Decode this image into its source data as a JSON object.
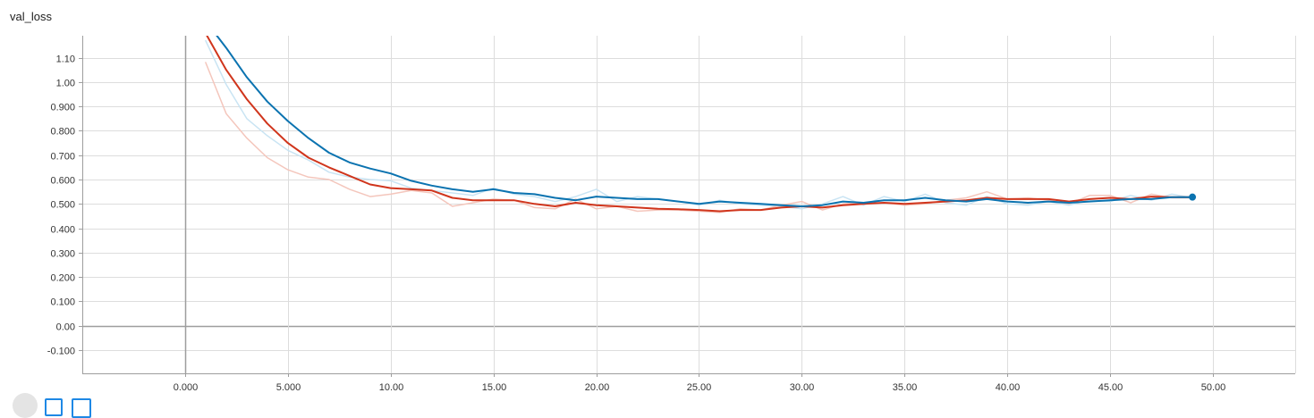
{
  "chart_data": {
    "type": "line",
    "title": "val_loss",
    "xlabel": "",
    "ylabel": "",
    "xlim": [
      -5,
      54
    ],
    "ylim": [
      -0.195,
      1.19
    ],
    "x_ticks": [
      0,
      5,
      10,
      15,
      20,
      25,
      30,
      35,
      40,
      45,
      50
    ],
    "x_tick_labels": [
      "0.000",
      "5.000",
      "10.00",
      "15.00",
      "20.00",
      "25.00",
      "30.00",
      "35.00",
      "40.00",
      "45.00",
      "50.00"
    ],
    "y_ticks": [
      -0.1,
      0,
      0.1,
      0.2,
      0.3,
      0.4,
      0.5,
      0.6,
      0.7,
      0.8,
      0.9,
      1.0,
      1.1
    ],
    "y_tick_labels": [
      "-0.100",
      "0.00",
      "0.100",
      "0.200",
      "0.300",
      "0.400",
      "0.500",
      "0.600",
      "0.700",
      "0.800",
      "0.900",
      "1.00",
      "1.10"
    ],
    "grid": true,
    "series": [
      {
        "color": "#c9e4f3",
        "style": "raw",
        "x": [
          1,
          2,
          3,
          4,
          5,
          6,
          7,
          8,
          9,
          10,
          11,
          12,
          13,
          14,
          15,
          16,
          17,
          18,
          19,
          20,
          21,
          22,
          23,
          24,
          25,
          26,
          27,
          28,
          29,
          30,
          31,
          32,
          33,
          34,
          35,
          36,
          37,
          38,
          39,
          40,
          41,
          42,
          43,
          44,
          45,
          46,
          47,
          48,
          49
        ],
        "y": [
          1.17,
          0.99,
          0.85,
          0.78,
          0.72,
          0.68,
          0.63,
          0.61,
          0.6,
          0.595,
          0.565,
          0.555,
          0.545,
          0.535,
          0.565,
          0.54,
          0.53,
          0.51,
          0.53,
          0.56,
          0.51,
          0.53,
          0.52,
          0.51,
          0.495,
          0.515,
          0.5,
          0.495,
          0.49,
          0.48,
          0.5,
          0.53,
          0.495,
          0.53,
          0.51,
          0.54,
          0.505,
          0.495,
          0.53,
          0.5,
          0.495,
          0.51,
          0.495,
          0.515,
          0.51,
          0.535,
          0.515,
          0.54,
          0.525
        ]
      },
      {
        "color": "#f4c6bc",
        "style": "raw",
        "x": [
          1,
          2,
          3,
          4,
          5,
          6,
          7,
          8,
          9,
          10,
          11,
          12,
          13,
          14,
          15,
          16,
          17,
          18,
          19,
          20,
          21,
          22,
          23,
          24,
          25,
          26,
          27,
          28,
          29,
          30,
          31,
          32,
          33,
          34,
          35,
          36,
          37,
          38,
          39,
          40,
          41,
          42,
          43,
          44,
          45,
          46,
          47,
          48,
          49
        ],
        "y": [
          1.08,
          0.87,
          0.77,
          0.69,
          0.64,
          0.61,
          0.6,
          0.56,
          0.53,
          0.54,
          0.555,
          0.545,
          0.49,
          0.505,
          0.52,
          0.515,
          0.485,
          0.48,
          0.52,
          0.48,
          0.49,
          0.47,
          0.475,
          0.475,
          0.47,
          0.465,
          0.48,
          0.475,
          0.495,
          0.51,
          0.475,
          0.5,
          0.505,
          0.505,
          0.495,
          0.5,
          0.515,
          0.525,
          0.55,
          0.52,
          0.525,
          0.515,
          0.5,
          0.535,
          0.535,
          0.505,
          0.54,
          0.525,
          0.525
        ]
      },
      {
        "color": "#d0351c",
        "style": "smoothed",
        "x": [
          1,
          2,
          3,
          4,
          5,
          6,
          7,
          8,
          9,
          10,
          11,
          12,
          13,
          14,
          15,
          16,
          17,
          18,
          19,
          20,
          21,
          22,
          23,
          24,
          25,
          26,
          27,
          28,
          29,
          30,
          31,
          32,
          33,
          34,
          35,
          36,
          37,
          38,
          39,
          40,
          41,
          42,
          43,
          44,
          45,
          46,
          47,
          48,
          49
        ],
        "y": [
          1.2,
          1.05,
          0.93,
          0.83,
          0.75,
          0.69,
          0.65,
          0.615,
          0.58,
          0.565,
          0.56,
          0.555,
          0.525,
          0.515,
          0.515,
          0.515,
          0.5,
          0.49,
          0.505,
          0.495,
          0.49,
          0.485,
          0.48,
          0.478,
          0.475,
          0.47,
          0.475,
          0.475,
          0.485,
          0.49,
          0.485,
          0.495,
          0.5,
          0.505,
          0.5,
          0.505,
          0.51,
          0.515,
          0.525,
          0.52,
          0.52,
          0.52,
          0.51,
          0.52,
          0.525,
          0.52,
          0.53,
          0.528,
          0.528
        ]
      },
      {
        "color": "#0b73b0",
        "style": "smoothed",
        "x": [
          1,
          2,
          3,
          4,
          5,
          6,
          7,
          8,
          9,
          10,
          11,
          12,
          13,
          14,
          15,
          16,
          17,
          18,
          19,
          20,
          21,
          22,
          23,
          24,
          25,
          26,
          27,
          28,
          29,
          30,
          31,
          32,
          33,
          34,
          35,
          36,
          37,
          38,
          39,
          40,
          41,
          42,
          43,
          44,
          45,
          46,
          47,
          48,
          49
        ],
        "y": [
          1.25,
          1.14,
          1.02,
          0.92,
          0.84,
          0.77,
          0.71,
          0.67,
          0.645,
          0.625,
          0.595,
          0.575,
          0.56,
          0.55,
          0.56,
          0.545,
          0.54,
          0.525,
          0.515,
          0.53,
          0.525,
          0.52,
          0.52,
          0.51,
          0.5,
          0.51,
          0.505,
          0.5,
          0.495,
          0.49,
          0.495,
          0.51,
          0.505,
          0.515,
          0.515,
          0.525,
          0.515,
          0.51,
          0.52,
          0.51,
          0.505,
          0.51,
          0.505,
          0.51,
          0.515,
          0.52,
          0.52,
          0.528,
          0.528
        ]
      }
    ],
    "last_point_marker": {
      "x": 49,
      "y": 0.528,
      "color": "#0b73b0"
    }
  },
  "controls": [
    {
      "icon": "expand-icon"
    },
    {
      "icon": "toggle-y-log-icon"
    },
    {
      "icon": "fit-domain-icon"
    }
  ]
}
